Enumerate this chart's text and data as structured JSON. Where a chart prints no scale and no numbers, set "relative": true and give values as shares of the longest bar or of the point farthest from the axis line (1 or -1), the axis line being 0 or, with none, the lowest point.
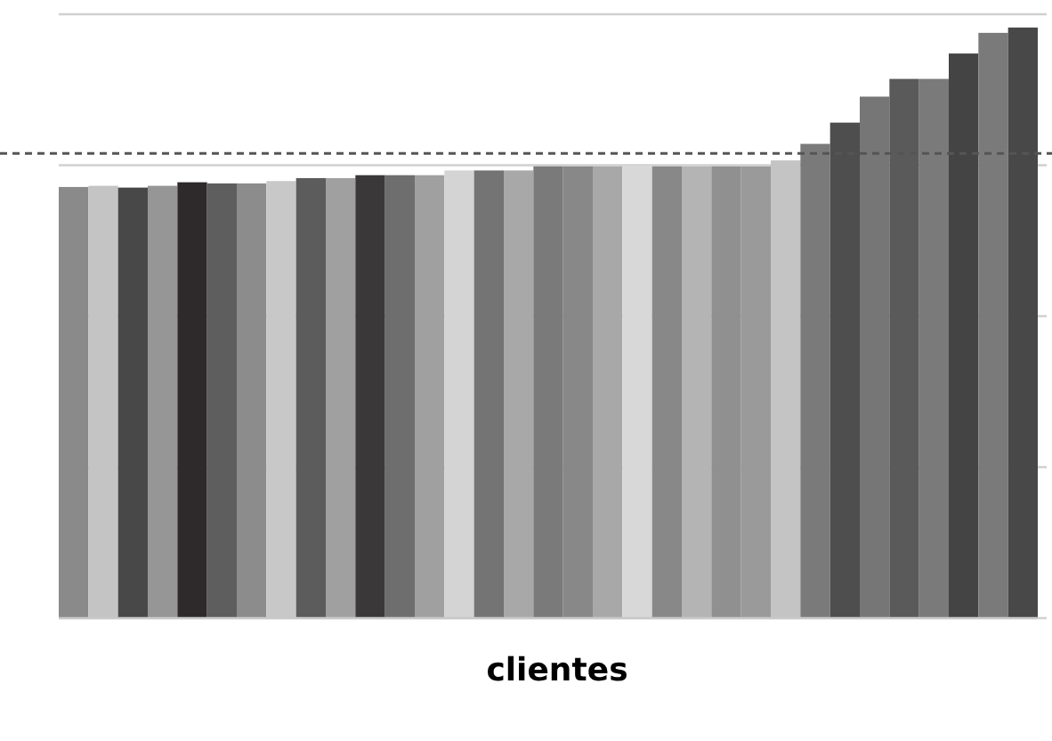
{
  "chart_data": {
    "type": "bar",
    "relative": true,
    "xlabel": "clientes",
    "grid": "y",
    "categories": [
      null,
      null,
      null,
      null,
      null,
      null,
      null,
      null,
      null,
      null,
      null,
      null,
      null,
      null,
      null,
      null,
      null,
      null,
      null,
      null,
      null,
      null,
      null,
      null,
      null,
      null,
      null,
      null,
      null,
      null,
      null,
      null,
      null
    ],
    "values": [
      0.73,
      0.732,
      0.729,
      0.732,
      0.738,
      0.736,
      0.736,
      0.74,
      0.745,
      0.745,
      0.75,
      0.75,
      0.75,
      0.758,
      0.758,
      0.758,
      0.765,
      0.765,
      0.765,
      0.765,
      0.765,
      0.765,
      0.765,
      0.765,
      0.775,
      0.803,
      0.839,
      0.883,
      0.913,
      0.913,
      0.956,
      0.991,
      1
    ],
    "colors": [
      "#8a8a8a",
      "#c4c4c4",
      "#484848",
      "#969696",
      "#2e2a2b",
      "#5e5e5e",
      "#8c8c8c",
      "#c8c8c8",
      "#5c5c5c",
      "#a0a0a0",
      "#3a3838",
      "#6e6e6e",
      "#a0a0a0",
      "#d4d4d4",
      "#747474",
      "#a8a8a8",
      "#7a7a7a",
      "#888888",
      "#a8a8a8",
      "#d8d8d8",
      "#888888",
      "#b4b4b4",
      "#909090",
      "#9a9a9a",
      "#c4c4c4",
      "#7a7a7a",
      "#4e4e4e",
      "#767676",
      "#5a5a5a",
      "#7a7a7a",
      "#444444",
      "#7a7a7a",
      "#484848"
    ],
    "ref_lines": [
      {
        "axis": "y",
        "value": 0.787,
        "color": "#555555",
        "line_style": "dashed"
      }
    ]
  }
}
